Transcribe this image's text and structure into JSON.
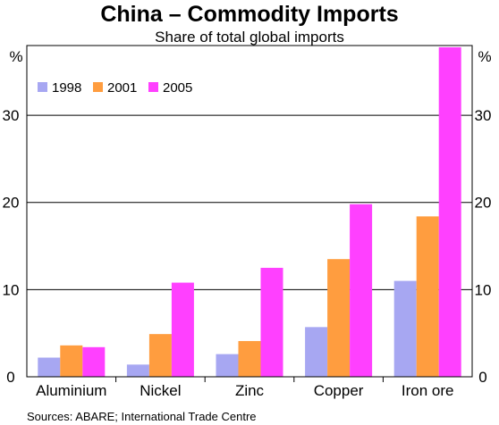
{
  "chart_data": {
    "type": "bar",
    "title": "China – Commodity Imports",
    "subtitle": "Share of total global imports",
    "y_unit_left": "%",
    "y_unit_right": "%",
    "ylim": [
      0,
      38
    ],
    "yticks": [
      0,
      10,
      20,
      30
    ],
    "grid": true,
    "legend_position": "top-left",
    "categories": [
      "Aluminium",
      "Nickel",
      "Zinc",
      "Copper",
      "Iron ore"
    ],
    "series": [
      {
        "name": "1998",
        "color": "#a7a7f2",
        "values": [
          2.2,
          1.4,
          2.6,
          5.7,
          11.0
        ]
      },
      {
        "name": "2001",
        "color": "#ff9d3f",
        "values": [
          3.6,
          4.9,
          4.1,
          13.5,
          18.4
        ]
      },
      {
        "name": "2005",
        "color": "#ff40ff",
        "values": [
          3.4,
          10.8,
          12.5,
          19.8,
          37.8
        ]
      }
    ],
    "source": "Sources: ABARE; International Trade Centre"
  }
}
